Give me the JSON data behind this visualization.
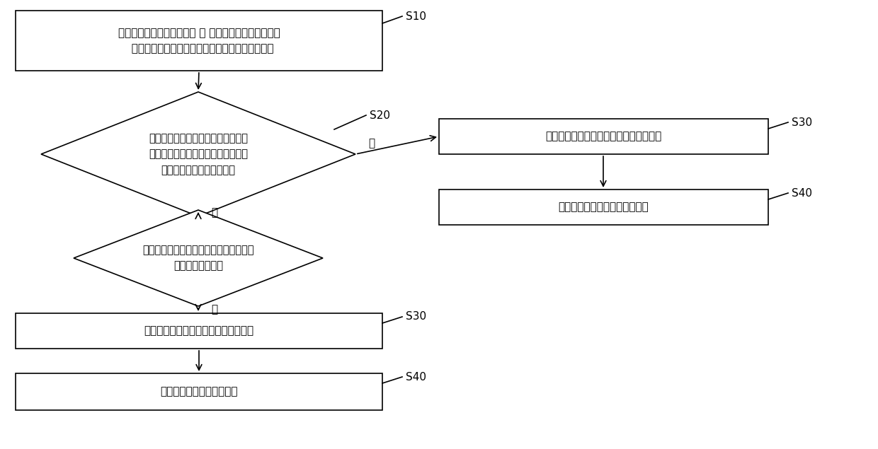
{
  "background_color": "#ffffff",
  "s10_label": "接收车辆自动爬行启动数据 、 车辆自动驻车启动数据或\n  车辆自动爬行与自动驻车相互切换启动数据的信息",
  "s20_label": "判断车辆是否行驶在道路上以及车辆\n与附近障碍物的距离是否处于预设距\n离并输出第一判断结果信息",
  "d2_label": "判断当前车辆是否处于挪车的状态并输出\n第二判断结果信息",
  "s30l_label": "输出启动车辆自动驻车程序的数据信息",
  "s40l_label": "执行启动车辆自动驻车程序",
  "s30r_label": "输出启动执行车辆自动爬行程序数据信息",
  "s40r_label": "执行启动执行车辆自动爬行程序",
  "yes_label": "是",
  "no_label": "否",
  "tag_s10": "S10",
  "tag_s20": "S20",
  "tag_s30": "S30",
  "tag_s40": "S40",
  "line_color": "#000000",
  "text_color": "#000000",
  "box_fill": "#ffffff",
  "box_edge": "#000000",
  "font_size_main": 11,
  "font_size_tag": 11,
  "lw": 1.2
}
